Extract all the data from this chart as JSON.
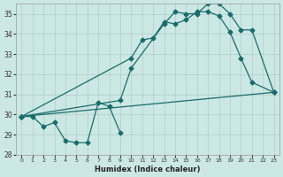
{
  "xlabel": "Humidex (Indice chaleur)",
  "xlim": [
    -0.5,
    23.5
  ],
  "ylim": [
    28,
    35.5
  ],
  "bg_color": "#cce8e4",
  "grid_color": "#b0ceca",
  "line_color": "#1a6b6b",
  "line1_x": [
    0,
    1,
    2,
    3,
    4,
    5,
    6,
    7,
    8,
    9
  ],
  "line1_y": [
    29.9,
    29.9,
    29.4,
    29.6,
    28.7,
    28.6,
    28.6,
    30.6,
    30.4,
    29.1
  ],
  "line2_x": [
    0,
    10,
    11,
    12,
    13,
    14,
    15,
    16,
    17,
    18,
    19,
    20,
    21,
    23
  ],
  "line2_y": [
    29.9,
    32.8,
    33.7,
    33.8,
    34.6,
    34.5,
    34.7,
    35.1,
    35.1,
    34.9,
    34.1,
    32.8,
    31.6,
    31.1
  ],
  "line3_x": [
    0,
    9,
    10,
    13,
    14,
    15,
    16,
    17,
    18,
    19,
    20,
    21,
    23
  ],
  "line3_y": [
    29.9,
    30.7,
    32.3,
    34.5,
    35.1,
    35.0,
    35.0,
    35.5,
    35.5,
    35.0,
    34.2,
    34.2,
    31.1
  ],
  "line4_x": [
    0,
    23
  ],
  "line4_y": [
    29.9,
    31.1
  ],
  "xticks": [
    0,
    1,
    2,
    3,
    4,
    5,
    6,
    7,
    8,
    9,
    10,
    11,
    12,
    13,
    14,
    15,
    16,
    17,
    18,
    19,
    20,
    21,
    22,
    23
  ],
  "yticks": [
    28,
    29,
    30,
    31,
    32,
    33,
    34,
    35
  ]
}
